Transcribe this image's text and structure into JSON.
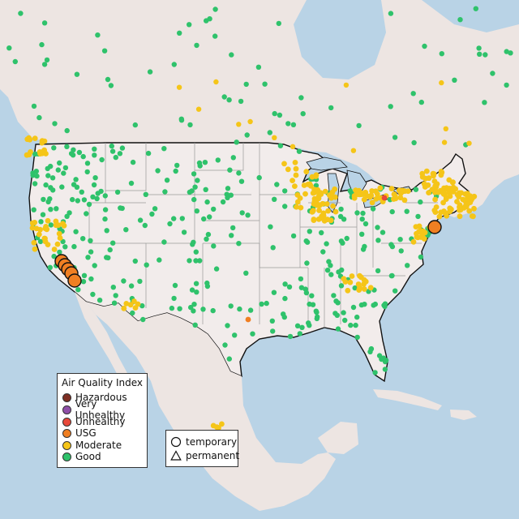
{
  "legend_aqi": {
    "title": "Air Quality Index",
    "items": [
      {
        "label": "Hazardous",
        "color": "#7e2f23"
      },
      {
        "label": "Very Unhealthy",
        "color": "#8f4fa8"
      },
      {
        "label": "Unhealthy",
        "color": "#e8493a"
      },
      {
        "label": "USG",
        "color": "#f07f22"
      },
      {
        "label": "Moderate",
        "color": "#f5c518"
      },
      {
        "label": "Good",
        "color": "#2fc26b"
      }
    ]
  },
  "legend_type": {
    "items": [
      {
        "label": "temporary",
        "icon": "circle-icon"
      },
      {
        "label": "permanent",
        "icon": "triangle-icon"
      }
    ]
  },
  "colors": {
    "ocean": "#b9d3e6",
    "land": "#ede5e2",
    "us_land": "#f2eceb",
    "border": "#111111",
    "state_line": "#9a9a9a",
    "no_data": "#c8c8c8"
  }
}
